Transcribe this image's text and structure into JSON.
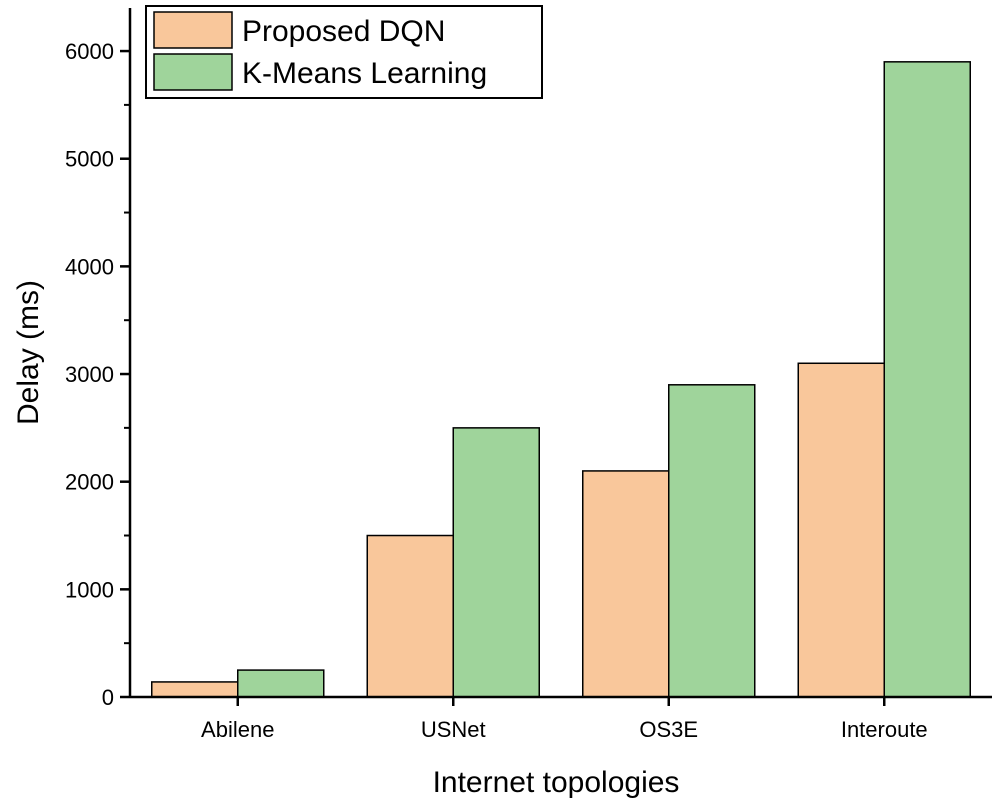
{
  "chart_data": {
    "type": "bar",
    "xlabel": "Internet topologies",
    "ylabel": "Delay (ms)",
    "categories": [
      "Abilene",
      "USNet",
      "OS3E",
      "Interoute"
    ],
    "series": [
      {
        "name": "Proposed DQN",
        "color": "#f9c79b",
        "values": [
          140,
          1500,
          2100,
          3100
        ]
      },
      {
        "name": "K-Means Learning",
        "color": "#9fd49b",
        "values": [
          250,
          2500,
          2900,
          5900
        ]
      }
    ],
    "ylim": [
      0,
      6400
    ],
    "yticks": [
      0,
      1000,
      2000,
      3000,
      4000,
      5000,
      6000
    ],
    "grid": false,
    "legend_position": "top-left"
  }
}
